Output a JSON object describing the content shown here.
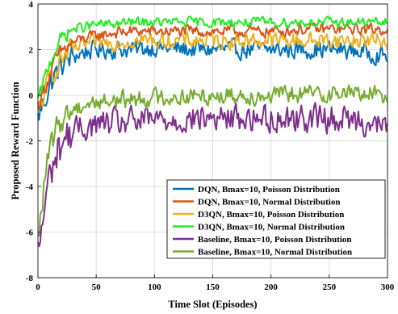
{
  "chart_data": {
    "type": "line",
    "xlabel": "Time Slot (Episodes)",
    "ylabel": "Proposed Reward Function",
    "xlim": [
      0,
      300
    ],
    "ylim": [
      -8,
      4
    ],
    "xticks": [
      0,
      50,
      100,
      150,
      200,
      250,
      300
    ],
    "yticks": [
      -8,
      -6,
      -4,
      -2,
      0,
      2,
      4
    ],
    "grid": true,
    "legend_position": "bottom-right",
    "series": [
      {
        "name": "DQN, Bmax=10, Poisson Distribution",
        "color": "#0072BD",
        "x": [
          0,
          5,
          10,
          15,
          20,
          30,
          40,
          50,
          60,
          80,
          100,
          130,
          160,
          200,
          230,
          260,
          280,
          300
        ],
        "y": [
          -1.0,
          -0.3,
          0.4,
          0.9,
          1.3,
          1.7,
          1.9,
          2.0,
          2.0,
          2.0,
          2.1,
          2.0,
          2.0,
          2.0,
          2.0,
          2.0,
          1.9,
          1.7
        ]
      },
      {
        "name": "DQN, Bmax=10, Normal Distribution",
        "color": "#D95319",
        "x": [
          0,
          5,
          10,
          15,
          20,
          30,
          40,
          50,
          60,
          80,
          100,
          130,
          160,
          200,
          230,
          260,
          280,
          300
        ],
        "y": [
          -0.5,
          0.2,
          0.9,
          1.5,
          1.9,
          2.3,
          2.5,
          2.6,
          2.7,
          2.8,
          2.8,
          2.8,
          2.8,
          2.8,
          2.9,
          2.9,
          2.9,
          2.9
        ]
      },
      {
        "name": "D3QN, Bmax=10, Poisson Distribution",
        "color": "#EDB120",
        "x": [
          0,
          5,
          10,
          15,
          20,
          30,
          40,
          50,
          60,
          80,
          100,
          130,
          160,
          200,
          230,
          260,
          280,
          300
        ],
        "y": [
          -0.8,
          0.0,
          0.7,
          1.2,
          1.6,
          2.0,
          2.2,
          2.3,
          2.3,
          2.4,
          2.4,
          2.4,
          2.4,
          2.4,
          2.4,
          2.4,
          2.4,
          2.4
        ]
      },
      {
        "name": "D3QN, Bmax=10, Normal Distribution",
        "color": "#1EEE1E",
        "x": [
          0,
          5,
          10,
          15,
          20,
          30,
          40,
          50,
          60,
          80,
          100,
          130,
          160,
          200,
          230,
          260,
          280,
          300
        ],
        "y": [
          -0.3,
          0.6,
          1.4,
          2.0,
          2.5,
          2.9,
          3.0,
          3.1,
          3.1,
          3.2,
          3.2,
          3.2,
          3.2,
          3.2,
          3.2,
          3.2,
          3.2,
          3.2
        ]
      },
      {
        "name": "Baseline, Bmax=10, Poisson Distribution",
        "color": "#7E2F8E",
        "x": [
          0,
          3,
          6,
          10,
          15,
          20,
          25,
          30,
          40,
          50,
          70,
          100,
          150,
          200,
          250,
          280,
          300
        ],
        "y": [
          -7.0,
          -6.0,
          -4.8,
          -3.6,
          -2.7,
          -2.1,
          -1.8,
          -1.6,
          -1.4,
          -1.3,
          -1.2,
          -1.1,
          -1.0,
          -1.0,
          -1.0,
          -1.1,
          -1.5
        ]
      },
      {
        "name": "Baseline, Bmax=10, Normal Distribution",
        "color": "#77AC30",
        "x": [
          0,
          3,
          6,
          10,
          15,
          20,
          25,
          30,
          40,
          50,
          70,
          100,
          150,
          200,
          250,
          280,
          300
        ],
        "y": [
          -6.5,
          -5.0,
          -3.6,
          -2.5,
          -1.6,
          -1.1,
          -0.8,
          -0.6,
          -0.4,
          -0.3,
          -0.2,
          -0.1,
          0.0,
          0.0,
          0.1,
          0.1,
          0.0
        ]
      }
    ]
  }
}
